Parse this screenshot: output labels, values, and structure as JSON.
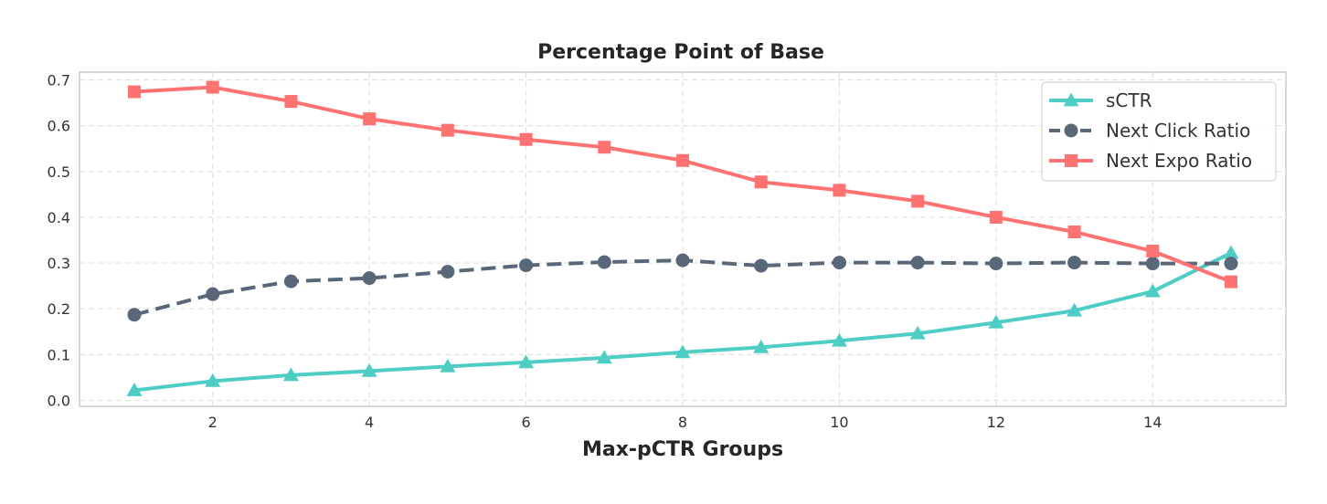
{
  "chart_data": {
    "type": "line",
    "title": "Percentage Point of Base",
    "xlabel": "Max-pCTR Groups",
    "ylabel": "",
    "xlim": [
      0.3,
      15.7
    ],
    "ylim": [
      -0.013,
      0.717
    ],
    "x_ticks": [
      2,
      4,
      6,
      8,
      10,
      12,
      14
    ],
    "y_ticks": [
      0.0,
      0.1,
      0.2,
      0.3,
      0.4,
      0.5,
      0.6,
      0.7
    ],
    "y_tick_labels": [
      "0.0",
      "0.1",
      "0.2",
      "0.3",
      "0.4",
      "0.5",
      "0.6",
      "0.7"
    ],
    "grid": true,
    "legend_position": "top-right",
    "x": [
      1,
      2,
      3,
      4,
      5,
      6,
      7,
      8,
      9,
      10,
      11,
      12,
      13,
      14,
      15
    ],
    "series": [
      {
        "name": "sCTR",
        "color": "#4ecdc4",
        "marker": "triangle",
        "line_style": "solid",
        "values": [
          0.022,
          0.042,
          0.055,
          0.064,
          0.074,
          0.083,
          0.093,
          0.105,
          0.116,
          0.13,
          0.146,
          0.17,
          0.196,
          0.238,
          0.322
        ]
      },
      {
        "name": "Next Click Ratio",
        "color": "#596778",
        "marker": "circle",
        "line_style": "dashed",
        "values": [
          0.187,
          0.232,
          0.26,
          0.267,
          0.281,
          0.295,
          0.302,
          0.306,
          0.294,
          0.301,
          0.301,
          0.299,
          0.301,
          0.299,
          0.299
        ]
      },
      {
        "name": "Next Expo Ratio",
        "color": "#ff7272",
        "marker": "square",
        "line_style": "solid",
        "values": [
          0.674,
          0.684,
          0.653,
          0.615,
          0.59,
          0.57,
          0.553,
          0.524,
          0.477,
          0.459,
          0.435,
          0.4,
          0.368,
          0.326,
          0.259
        ]
      }
    ]
  }
}
